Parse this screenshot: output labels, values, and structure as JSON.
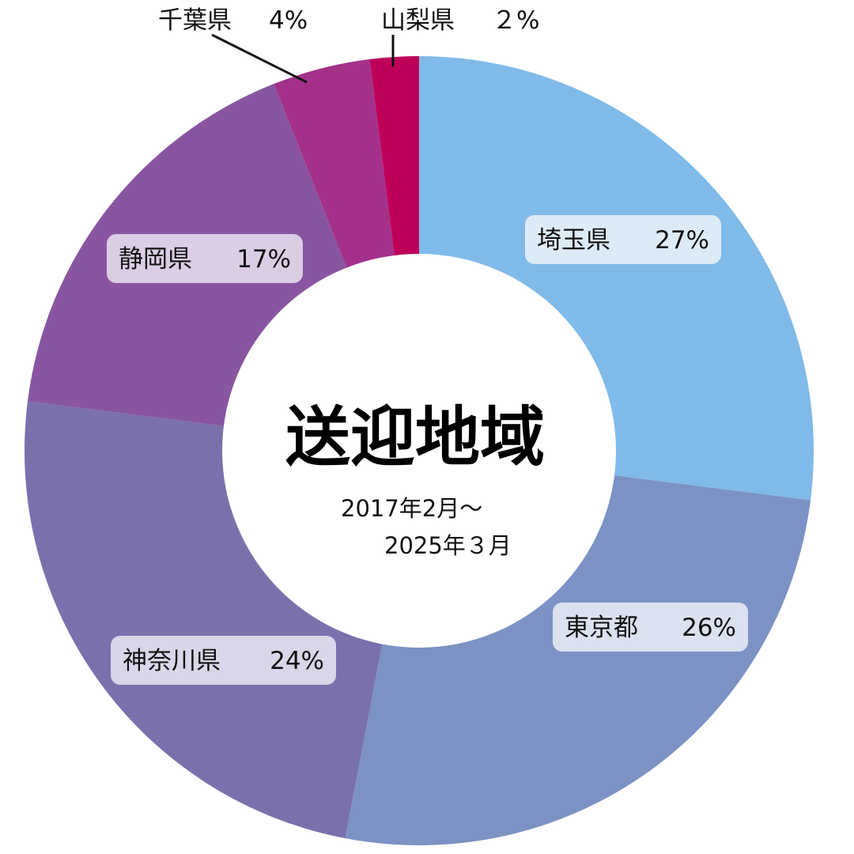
{
  "chart_data": {
    "type": "pie",
    "title": "送迎地域",
    "subtitle_lines": [
      "2017年2月～",
      "2025年３月"
    ],
    "categories": [
      "埼玉県",
      "東京都",
      "神奈川県",
      "静岡県",
      "千葉県",
      "山梨県"
    ],
    "values": [
      27,
      26,
      24,
      17,
      4,
      2
    ],
    "value_labels": [
      "27%",
      "26%",
      "24%",
      "17%",
      "4%",
      "２%"
    ],
    "colors": [
      "#80BAE8",
      "#7C92C4",
      "#7A71AC",
      "#8955A0",
      "#A3318A",
      "#BE0059"
    ],
    "label_box_colors": [
      "#DDEBF7",
      "#DCE1EF",
      "#DAD5E8",
      "#DACDE4",
      "",
      ""
    ]
  }
}
